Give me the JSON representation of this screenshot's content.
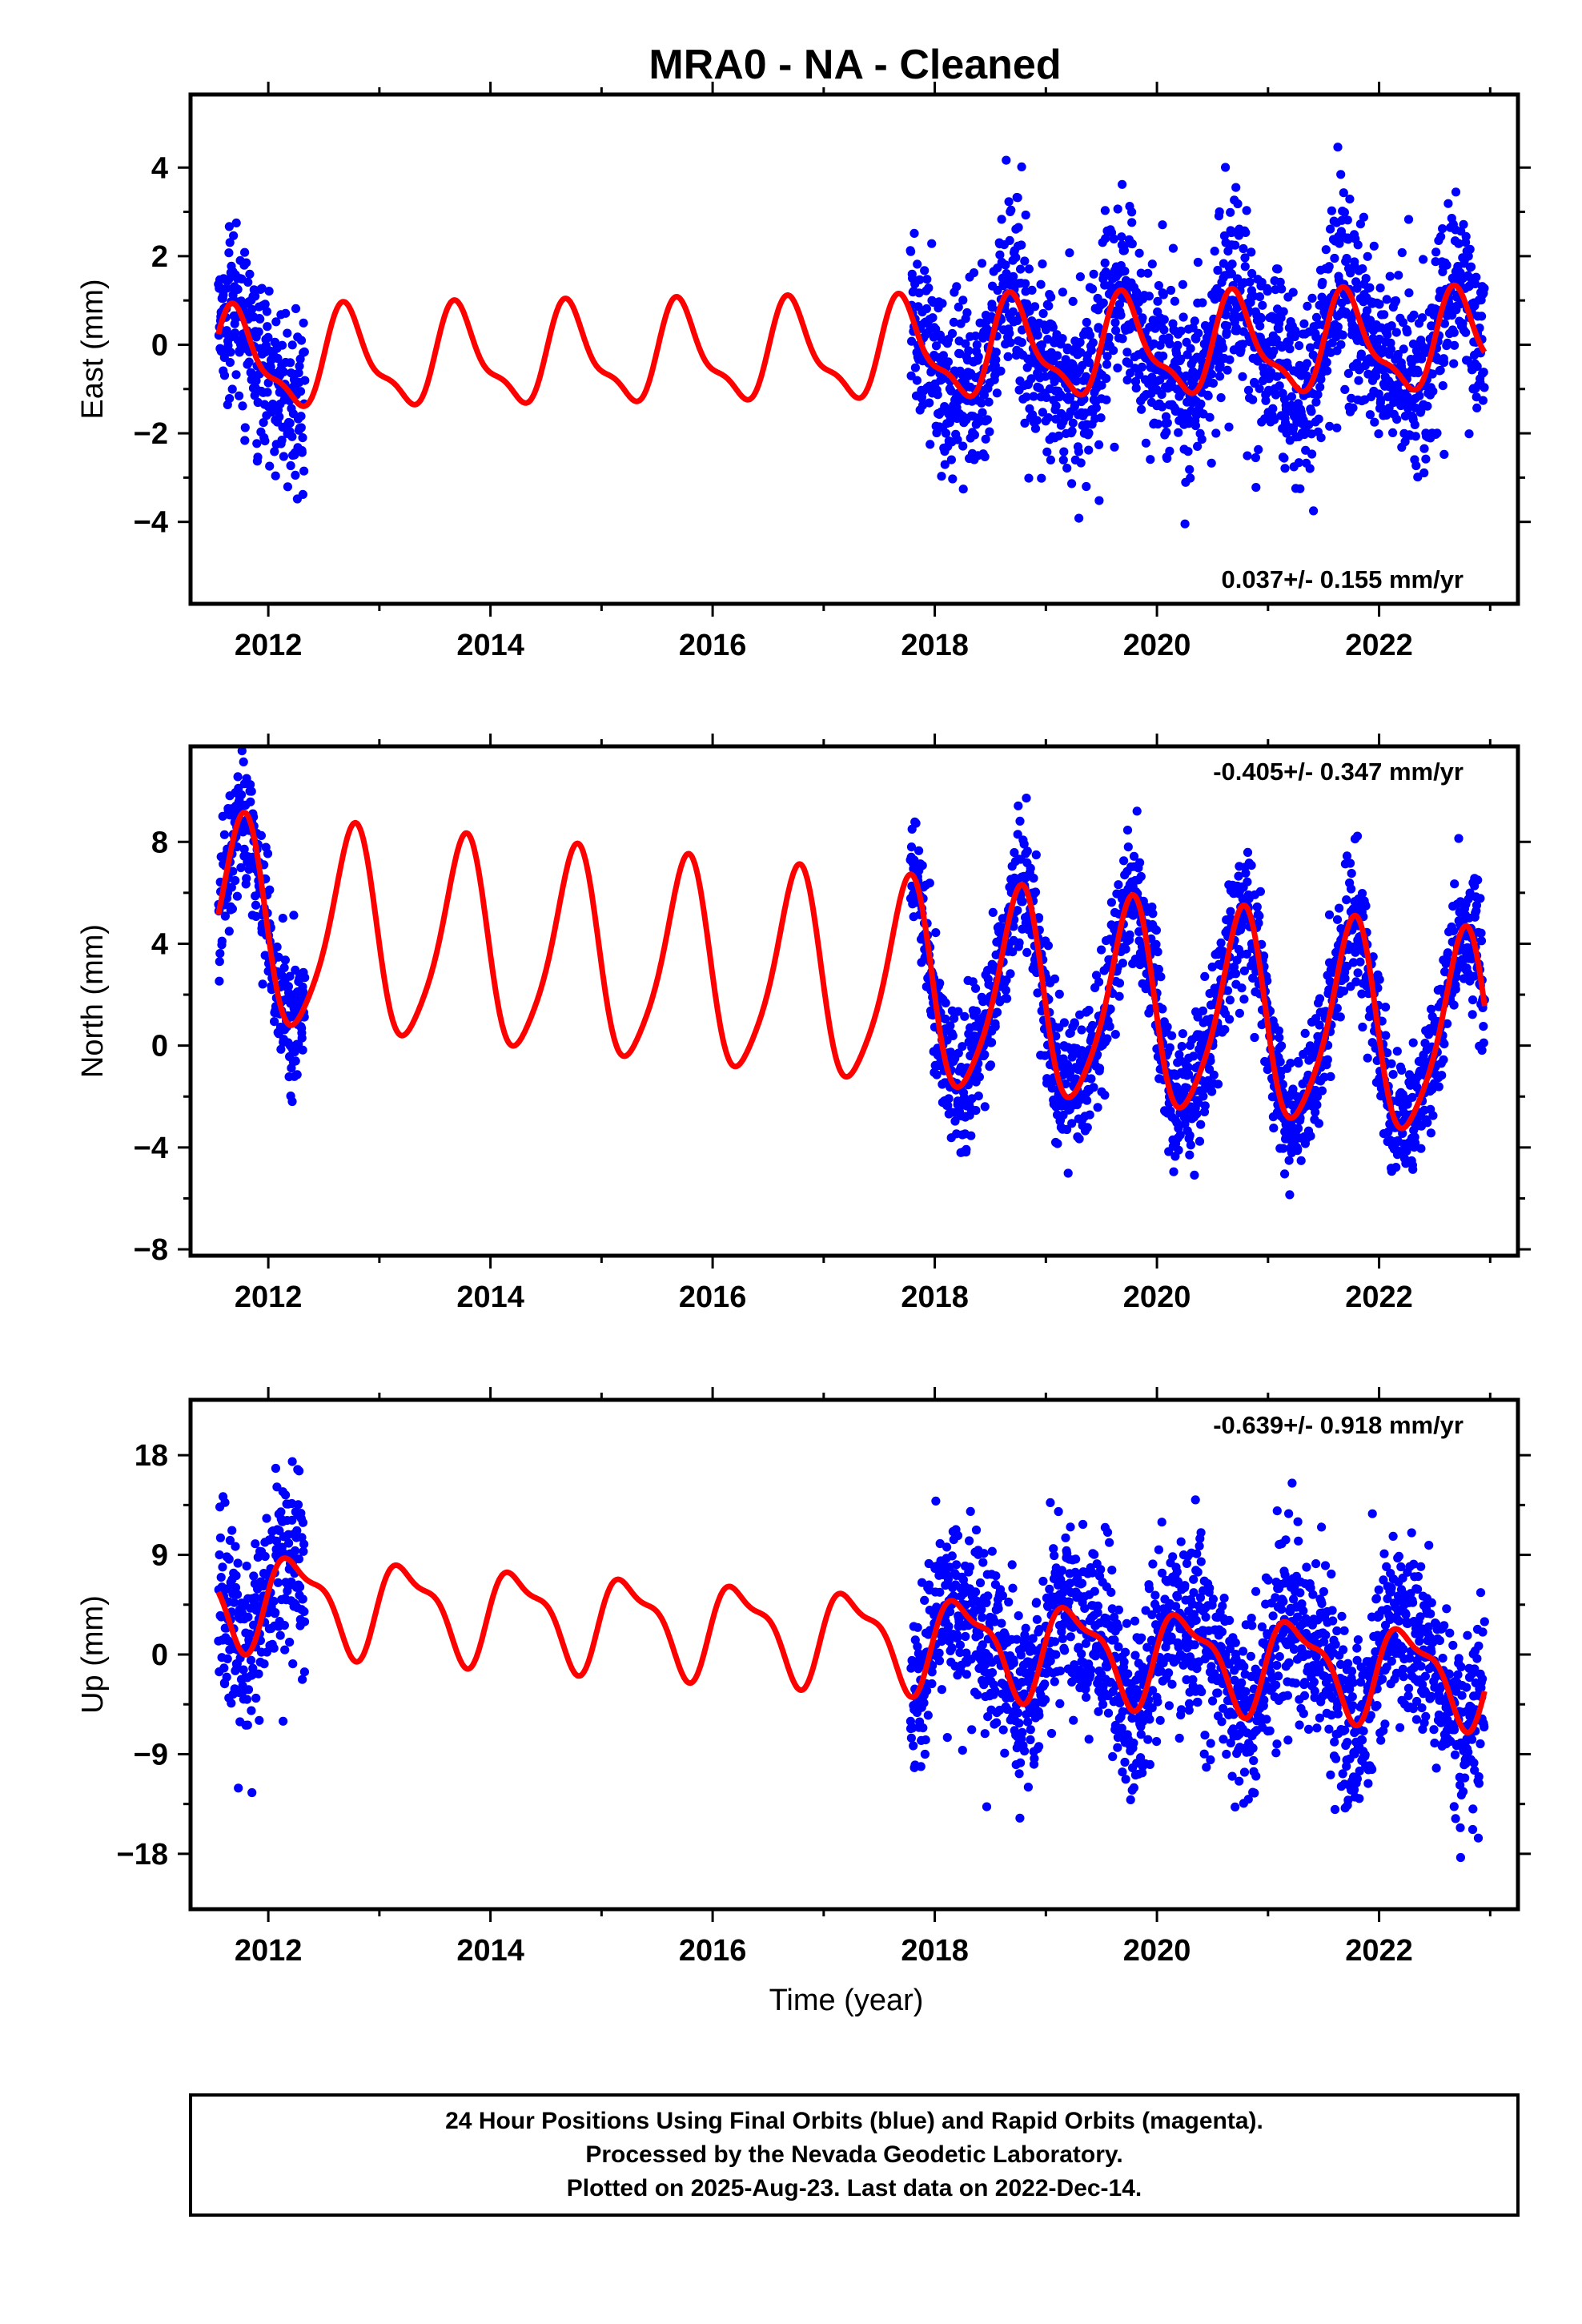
{
  "title": "MRA0  - NA - Cleaned",
  "colors": {
    "final_orbits": "#0000ff",
    "model": "#ff0000",
    "frame": "#000000"
  },
  "info_box": {
    "line1": "24 Hour Positions Using Final Orbits (blue) and Rapid Orbits (magenta).",
    "line2": "Processed by the Nevada Geodetic Laboratory.",
    "line3": "Plotted on 2025-Aug-23. Last data on 2022-Dec-14."
  },
  "chart_data": [
    {
      "type": "scatter",
      "component": "east",
      "ylabel": "East (mm)",
      "xlabel": "",
      "xlim": [
        2011.3,
        2023.25
      ],
      "ylim": [
        -5.85,
        5.65
      ],
      "xticks": [
        2012,
        2014,
        2016,
        2018,
        2020,
        2022
      ],
      "yticks": [
        -4,
        -2,
        0,
        2,
        4
      ],
      "rate": "0.037+/- 0.155 mm/yr",
      "rate_position": "bottom-right",
      "data_segments": [
        {
          "start": 2011.55,
          "end": 2012.33,
          "mean": 0.05
        },
        {
          "start": 2017.78,
          "end": 2022.95,
          "mean": 0.0
        }
      ],
      "noise_sd": 1.05,
      "points_per_year": 340,
      "model": {
        "offset": -0.2,
        "trend": 0.037,
        "ref_year": 2017,
        "annual_cos": -0.22,
        "annual_sin": -1.0,
        "semi_cos": -0.1,
        "semi_sin": 0.35
      }
    },
    {
      "type": "scatter",
      "component": "north",
      "ylabel": "North (mm)",
      "xlabel": "",
      "xlim": [
        2011.3,
        2023.25
      ],
      "ylim": [
        -8.25,
        11.75
      ],
      "xticks": [
        2012,
        2014,
        2016,
        2018,
        2020,
        2022
      ],
      "yticks": [
        -8,
        -4,
        0,
        4,
        8
      ],
      "rate": "-0.405+/- 0.347 mm/yr",
      "rate_position": "top-right",
      "data_segments": [
        {
          "start": 2011.55,
          "end": 2012.33,
          "mean": 0.4
        },
        {
          "start": 2017.78,
          "end": 2022.95,
          "mean": 0.0
        }
      ],
      "noise_sd": 1.3,
      "points_per_year": 340,
      "model": {
        "offset": 2.55,
        "trend": -0.405,
        "ref_year": 2017,
        "annual_cos": 0.2,
        "annual_sin": -3.95,
        "semi_cos": -0.4,
        "semi_sin": -0.55
      }
    },
    {
      "type": "scatter",
      "component": "up",
      "ylabel": "Up (mm)",
      "xlabel": "Time (year)",
      "xlim": [
        2011.3,
        2023.25
      ],
      "ylim": [
        -23.0,
        23.0
      ],
      "xticks": [
        2012,
        2014,
        2016,
        2018,
        2020,
        2022
      ],
      "yticks": [
        -18,
        -9,
        0,
        9,
        18
      ],
      "rate": "-0.639+/- 0.918 mm/yr",
      "rate_position": "top-right",
      "data_segments": [
        {
          "start": 2011.55,
          "end": 2012.33,
          "mean": 0.0
        },
        {
          "start": 2017.78,
          "end": 2022.95,
          "mean": 0.0
        }
      ],
      "noise_sd": 4.1,
      "points_per_year": 340,
      "model": {
        "offset": 1.8,
        "trend": -0.639,
        "ref_year": 2017,
        "annual_cos": -0.2,
        "annual_sin": 3.9,
        "semi_cos": 0.9,
        "semi_sin": 1.1
      }
    }
  ]
}
